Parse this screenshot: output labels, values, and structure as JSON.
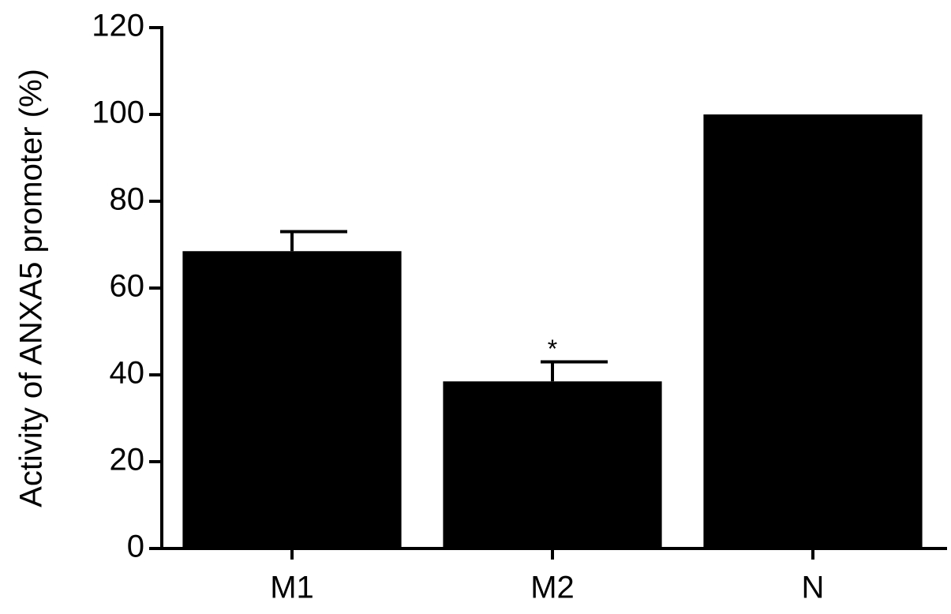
{
  "chart_data": {
    "type": "bar",
    "y_label": "Activity of ANXA5 promoter (%)",
    "categories": [
      "M1",
      "M2",
      "N"
    ],
    "values": [
      68.5,
      38.5,
      100
    ],
    "errors": [
      4.5,
      4.5,
      null
    ],
    "color": "#000000",
    "ylim": [
      0,
      120
    ],
    "yticks": [
      0,
      20,
      40,
      60,
      80,
      100,
      120
    ],
    "annotations": [
      {
        "text": "*",
        "category": "M2"
      }
    ]
  }
}
